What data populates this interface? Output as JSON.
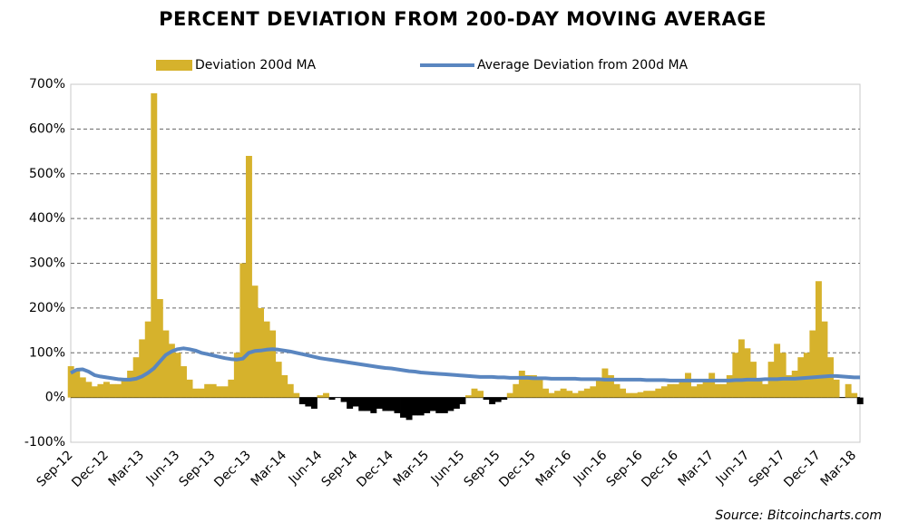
{
  "chart_data": {
    "type": "bar",
    "title": "PERCENT DEVIATION FROM 200-DAY MOVING AVERAGE",
    "source": "Source: Bitcoincharts.com",
    "categories": [
      "Sep-12",
      null,
      null,
      null,
      null,
      null,
      "Dec-12",
      null,
      null,
      null,
      null,
      null,
      "Mar-13",
      null,
      null,
      null,
      null,
      null,
      "Jun-13",
      null,
      null,
      null,
      null,
      null,
      "Sep-13",
      null,
      null,
      null,
      null,
      null,
      "Dec-13",
      null,
      null,
      null,
      null,
      null,
      "Mar-14",
      null,
      null,
      null,
      null,
      null,
      "Jun-14",
      null,
      null,
      null,
      null,
      null,
      "Sep-14",
      null,
      null,
      null,
      null,
      null,
      "Dec-14",
      null,
      null,
      null,
      null,
      null,
      "Mar-15",
      null,
      null,
      null,
      null,
      null,
      "Jun-15",
      null,
      null,
      null,
      null,
      null,
      "Sep-15",
      null,
      null,
      null,
      null,
      null,
      "Dec-15",
      null,
      null,
      null,
      null,
      null,
      "Mar-16",
      null,
      null,
      null,
      null,
      null,
      "Jun-16",
      null,
      null,
      null,
      null,
      null,
      "Sep-16",
      null,
      null,
      null,
      null,
      null,
      "Dec-16",
      null,
      null,
      null,
      null,
      null,
      "Mar-17",
      null,
      null,
      null,
      null,
      null,
      "Jun-17",
      null,
      null,
      null,
      null,
      null,
      "Sep-17",
      null,
      null,
      null,
      null,
      null,
      "Dec-17",
      null,
      null,
      null,
      null,
      null,
      "Mar-18",
      null
    ],
    "series": [
      {
        "name": "Deviation 200d MA",
        "type": "bar",
        "color": "#d6b22c",
        "negative_color": "#000000",
        "values": [
          70,
          60,
          45,
          35,
          25,
          30,
          35,
          30,
          30,
          40,
          60,
          90,
          130,
          170,
          680,
          220,
          150,
          120,
          100,
          70,
          40,
          20,
          20,
          30,
          30,
          25,
          25,
          40,
          100,
          300,
          540,
          250,
          200,
          170,
          150,
          80,
          50,
          30,
          10,
          -15,
          -20,
          -25,
          5,
          10,
          -5,
          0,
          -10,
          -25,
          -20,
          -30,
          -30,
          -35,
          -25,
          -30,
          -30,
          -35,
          -45,
          -50,
          -40,
          -40,
          -35,
          -30,
          -35,
          -35,
          -30,
          -25,
          -15,
          5,
          20,
          15,
          -5,
          -15,
          -10,
          -5,
          10,
          30,
          60,
          50,
          50,
          40,
          20,
          10,
          15,
          20,
          15,
          10,
          15,
          20,
          25,
          40,
          65,
          50,
          30,
          20,
          10,
          10,
          12,
          15,
          15,
          20,
          25,
          30,
          30,
          40,
          55,
          25,
          30,
          40,
          55,
          30,
          30,
          50,
          100,
          130,
          110,
          80,
          40,
          30,
          80,
          120,
          100,
          50,
          60,
          90,
          100,
          150,
          260,
          170,
          90,
          40,
          0,
          30,
          10,
          -15
        ]
      },
      {
        "name": "Average Deviation from 200d MA",
        "type": "line",
        "color": "#5a86c0",
        "values": [
          55,
          62,
          63,
          58,
          50,
          47,
          45,
          43,
          41,
          40,
          40,
          42,
          47,
          55,
          65,
          80,
          95,
          103,
          108,
          110,
          108,
          105,
          100,
          97,
          94,
          91,
          88,
          86,
          85,
          87,
          100,
          104,
          105,
          107,
          108,
          107,
          105,
          103,
          100,
          97,
          94,
          91,
          88,
          86,
          84,
          82,
          80,
          78,
          76,
          74,
          72,
          70,
          68,
          66,
          65,
          63,
          61,
          59,
          58,
          56,
          55,
          54,
          53,
          52,
          51,
          50,
          49,
          48,
          47,
          46,
          46,
          46,
          45,
          45,
          44,
          44,
          44,
          44,
          43,
          43,
          43,
          42,
          42,
          42,
          42,
          42,
          41,
          41,
          41,
          41,
          40,
          40,
          40,
          40,
          40,
          40,
          40,
          39,
          39,
          39,
          39,
          38,
          38,
          38,
          38,
          38,
          38,
          38,
          38,
          38,
          38,
          38,
          39,
          39,
          40,
          40,
          40,
          41,
          41,
          41,
          42,
          42,
          42,
          43,
          44,
          45,
          46,
          47,
          48,
          48,
          47,
          46,
          45,
          45
        ]
      }
    ],
    "ylim": [
      -100,
      700
    ],
    "yticks": [
      {
        "value": -100,
        "label": "-100%"
      },
      {
        "value": 0,
        "label": "0%"
      },
      {
        "value": 100,
        "label": "100%"
      },
      {
        "value": 200,
        "label": "200%"
      },
      {
        "value": 300,
        "label": "300%"
      },
      {
        "value": 400,
        "label": "400%"
      },
      {
        "value": 500,
        "label": "500%"
      },
      {
        "value": 600,
        "label": "600%"
      },
      {
        "value": 700,
        "label": "700%"
      }
    ],
    "grid": true
  }
}
